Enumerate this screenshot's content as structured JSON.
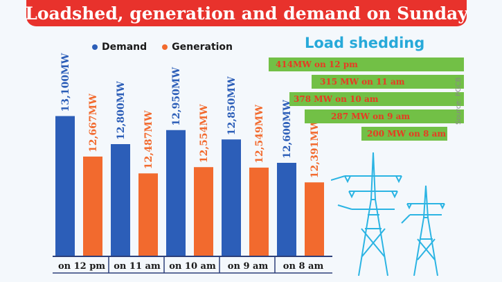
{
  "title": "Loadshed, generation and demand on Sunday",
  "legend": [
    {
      "label": "Demand",
      "color": "#2c5eb8"
    },
    {
      "label": "Generation",
      "color": "#f26a2e"
    }
  ],
  "load_shedding": {
    "title": "Load shedding",
    "items": [
      "414MW on 12 pm",
      "315 MW on 11 am",
      "378 MW on 10 am",
      "287 MW on 9 am",
      "200 MW on 8 am"
    ]
  },
  "source": "Source: PGCB",
  "colors": {
    "banner": "#e8322c",
    "demand": "#2c5eb8",
    "generation": "#f26a2e",
    "shed_bar": "#72c046",
    "tower": "#2bb4e3"
  },
  "icons": [
    "power-tower-icon"
  ],
  "chart_data": {
    "type": "bar",
    "title": "Loadshed, generation and demand on Sunday",
    "categories": [
      "on 12 pm",
      "on 11 am",
      "on 10 am",
      "on 9 am",
      "on 8 am"
    ],
    "series": [
      {
        "name": "Demand",
        "values": [
          13100,
          12800,
          12950,
          12850,
          12600
        ],
        "labels": [
          "13,100MW",
          "12,800MW",
          "12,950MW",
          "12,850MW",
          "12,600MW"
        ]
      },
      {
        "name": "Generation",
        "values": [
          12667,
          12487,
          12554,
          12549,
          12391
        ],
        "labels": [
          "12,667MW",
          "12,487MW",
          "12,554MW",
          "12,549MW",
          "12,391MW"
        ]
      }
    ],
    "ylim": [
      11600,
      13600
    ],
    "grid": false,
    "legend": "top"
  }
}
